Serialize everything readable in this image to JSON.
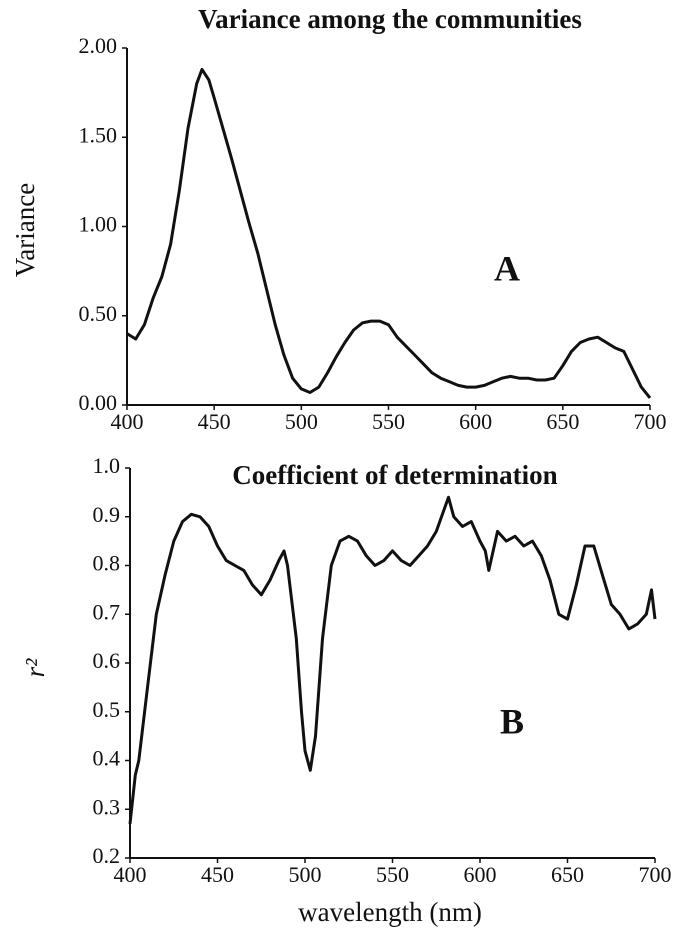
{
  "chart_data": [
    {
      "type": "line",
      "title": "Variance among the communities",
      "y_label": "Variance",
      "annotation": "A",
      "color": "#111111",
      "x": [
        400,
        405,
        410,
        415,
        420,
        425,
        430,
        435,
        440,
        443,
        447,
        450,
        455,
        460,
        465,
        470,
        475,
        480,
        485,
        490,
        495,
        500,
        505,
        510,
        515,
        520,
        525,
        530,
        535,
        540,
        545,
        550,
        555,
        560,
        565,
        570,
        575,
        580,
        585,
        590,
        595,
        600,
        605,
        610,
        615,
        620,
        625,
        630,
        635,
        640,
        645,
        650,
        655,
        660,
        665,
        670,
        675,
        680,
        685,
        690,
        695,
        700
      ],
      "values": [
        0.4,
        0.37,
        0.45,
        0.6,
        0.72,
        0.9,
        1.2,
        1.55,
        1.8,
        1.88,
        1.82,
        1.72,
        1.55,
        1.38,
        1.2,
        1.02,
        0.85,
        0.65,
        0.45,
        0.28,
        0.15,
        0.09,
        0.07,
        0.1,
        0.18,
        0.27,
        0.35,
        0.42,
        0.46,
        0.47,
        0.47,
        0.45,
        0.38,
        0.33,
        0.28,
        0.23,
        0.18,
        0.15,
        0.13,
        0.11,
        0.1,
        0.1,
        0.11,
        0.13,
        0.15,
        0.16,
        0.15,
        0.15,
        0.14,
        0.14,
        0.15,
        0.22,
        0.3,
        0.35,
        0.37,
        0.38,
        0.35,
        0.32,
        0.3,
        0.2,
        0.1,
        0.04
      ],
      "xlim": [
        400,
        700
      ],
      "xticks": [
        400,
        450,
        500,
        550,
        600,
        650,
        700
      ],
      "ylim": [
        0,
        2
      ],
      "yticks": [
        {
          "value": 0,
          "label": "0.00"
        },
        {
          "value": 0.5,
          "label": "0.50"
        },
        {
          "value": 1,
          "label": "1.00"
        },
        {
          "value": 1.5,
          "label": "1.50"
        },
        {
          "value": 2,
          "label": "2.00"
        }
      ],
      "grid": false
    },
    {
      "type": "line",
      "title": "Coefficient of determination",
      "y_label": "r²",
      "x_label": "wavelength  (nm)",
      "annotation": "B",
      "color": "#111111",
      "x": [
        400,
        403,
        405,
        410,
        415,
        420,
        425,
        430,
        435,
        440,
        445,
        450,
        455,
        460,
        465,
        470,
        475,
        480,
        485,
        488,
        490,
        495,
        498,
        500,
        503,
        506,
        510,
        515,
        520,
        525,
        530,
        535,
        540,
        545,
        550,
        555,
        560,
        565,
        570,
        575,
        580,
        582,
        585,
        590,
        595,
        600,
        603,
        605,
        610,
        615,
        620,
        625,
        630,
        635,
        640,
        645,
        650,
        655,
        660,
        665,
        670,
        675,
        680,
        685,
        690,
        695,
        698,
        700
      ],
      "values": [
        0.27,
        0.37,
        0.4,
        0.55,
        0.7,
        0.78,
        0.85,
        0.89,
        0.905,
        0.9,
        0.88,
        0.84,
        0.81,
        0.8,
        0.79,
        0.76,
        0.74,
        0.77,
        0.81,
        0.83,
        0.8,
        0.65,
        0.5,
        0.42,
        0.38,
        0.45,
        0.65,
        0.8,
        0.85,
        0.86,
        0.85,
        0.82,
        0.8,
        0.81,
        0.83,
        0.81,
        0.8,
        0.82,
        0.84,
        0.87,
        0.92,
        0.94,
        0.9,
        0.88,
        0.89,
        0.85,
        0.83,
        0.79,
        0.87,
        0.85,
        0.86,
        0.84,
        0.85,
        0.82,
        0.77,
        0.7,
        0.69,
        0.76,
        0.84,
        0.84,
        0.78,
        0.72,
        0.7,
        0.67,
        0.68,
        0.7,
        0.75,
        0.69
      ],
      "xlim": [
        400,
        700
      ],
      "xticks": [
        400,
        450,
        500,
        550,
        600,
        650,
        700
      ],
      "ylim": [
        0.2,
        1
      ],
      "yticks": [
        0.2,
        0.3,
        0.4,
        0.5,
        0.6,
        0.7,
        0.8,
        0.9,
        {
          "value": 1,
          "label": "1.0"
        }
      ],
      "grid": false
    }
  ]
}
